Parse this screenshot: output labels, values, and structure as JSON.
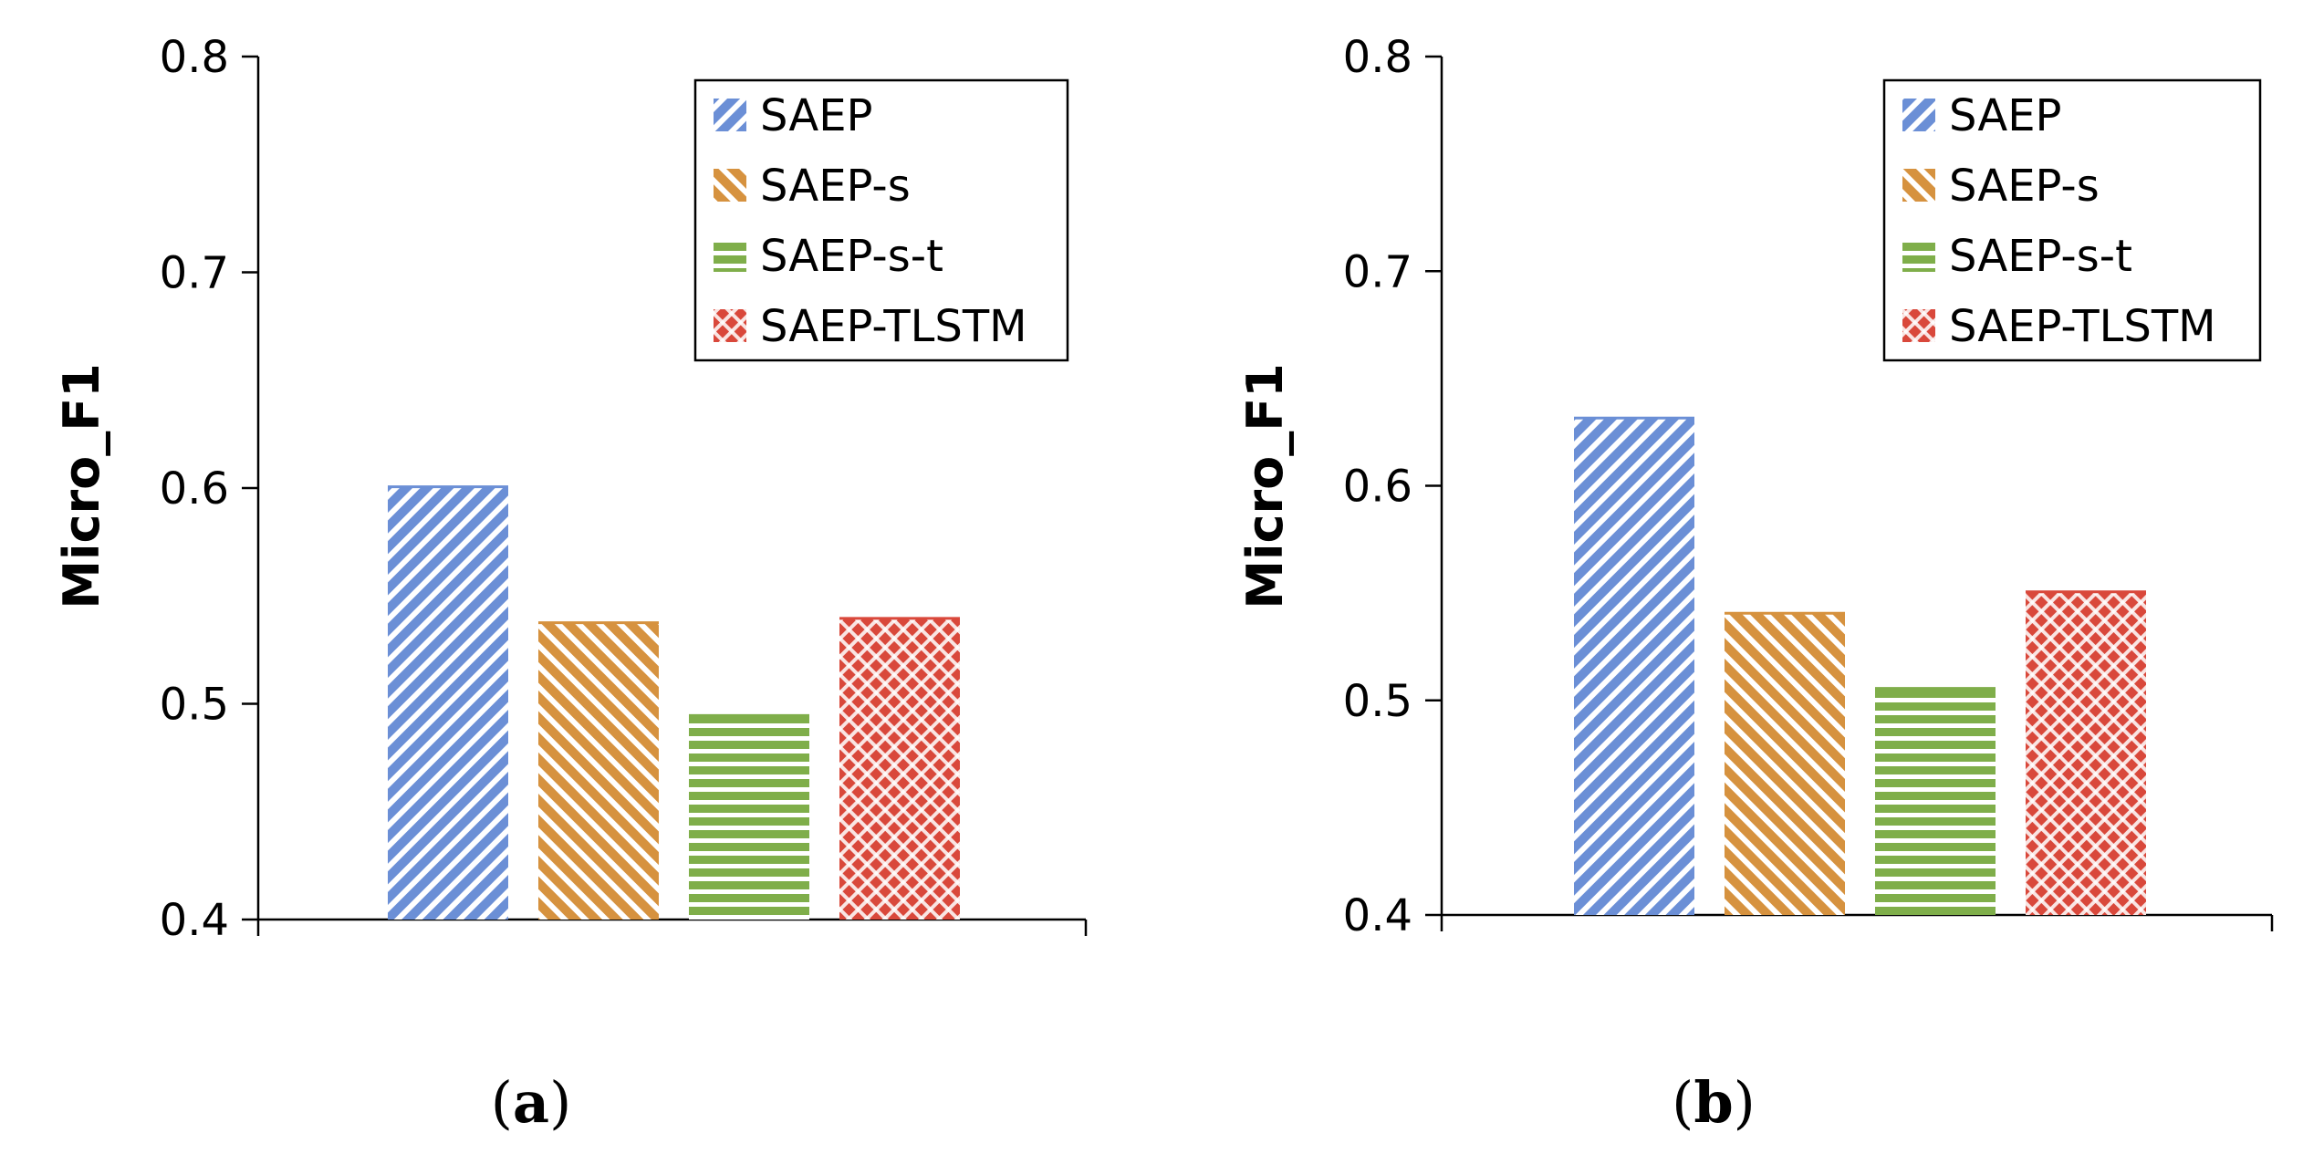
{
  "colors": {
    "SAEP": "#6b8fd6",
    "SAEP-s": "#d6923f",
    "SAEP-s-t": "#7fae4a",
    "SAEP-TLSTM": "#d9483b"
  },
  "chart_data": [
    {
      "type": "bar",
      "panel": "a",
      "caption": {
        "open": "(",
        "letter": "a",
        "close": ")"
      },
      "ylabel": "Micro_F1",
      "ylim": [
        0.4,
        0.8
      ],
      "yticks": [
        "0.4",
        "0.5",
        "0.6",
        "0.7",
        "0.8"
      ],
      "legend": [
        "SAEP",
        "SAEP-s",
        "SAEP-s-t",
        "SAEP-TLSTM"
      ],
      "legend_position": "top-right",
      "series": [
        {
          "name": "SAEP",
          "values": [
            0.601
          ]
        },
        {
          "name": "SAEP-s",
          "values": [
            0.538
          ]
        },
        {
          "name": "SAEP-s-t",
          "values": [
            0.495
          ]
        },
        {
          "name": "SAEP-TLSTM",
          "values": [
            0.54
          ]
        }
      ]
    },
    {
      "type": "bar",
      "panel": "b",
      "caption": {
        "open": "(",
        "letter": "b",
        "close": ")"
      },
      "ylabel": "Micro_F1",
      "ylim": [
        0.4,
        0.8
      ],
      "yticks": [
        "0.4",
        "0.5",
        "0.6",
        "0.7",
        "0.8"
      ],
      "legend": [
        "SAEP",
        "SAEP-s",
        "SAEP-s-t",
        "SAEP-TLSTM"
      ],
      "legend_position": "top-right",
      "series": [
        {
          "name": "SAEP",
          "values": [
            0.632
          ]
        },
        {
          "name": "SAEP-s",
          "values": [
            0.541
          ]
        },
        {
          "name": "SAEP-s-t",
          "values": [
            0.506
          ]
        },
        {
          "name": "SAEP-TLSTM",
          "values": [
            0.551
          ]
        }
      ]
    }
  ]
}
